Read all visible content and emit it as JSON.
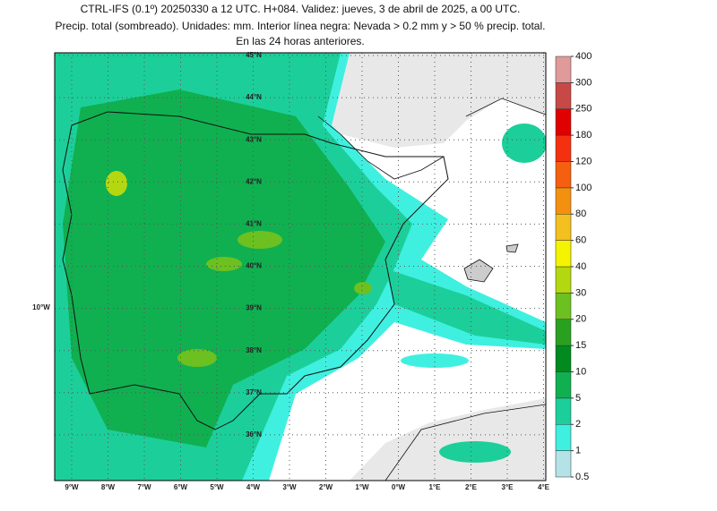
{
  "header": {
    "lines": [
      "CTRL-IFS (0.1º) 20250330 a 12 UTC. H+084. Validez: jueves, 3 de abril de 2025, a 00 UTC.",
      "Precip. total (sombreado). Unidades: mm. Interior línea negra: Nevada > 0.2 mm y > 50 % precip. total.",
      "En las 24 horas anteriores."
    ]
  },
  "map": {
    "lat_labels": [
      "45°N",
      "44°N",
      "43°N",
      "42°N",
      "41°N",
      "40°N",
      "39°N",
      "38°N",
      "37°N",
      "36°N"
    ],
    "lon_labels": [
      "9°W",
      "8°W",
      "7°W",
      "6°W",
      "5°W",
      "4°W",
      "3°W",
      "2°W",
      "1°W",
      "0°W",
      "1°E",
      "2°E",
      "3°E",
      "4°E"
    ],
    "side_label": "10°W"
  },
  "colorbar": {
    "levels": [
      0.5,
      1,
      2,
      5,
      10,
      15,
      20,
      30,
      40,
      60,
      80,
      100,
      120,
      180,
      250,
      300,
      400
    ],
    "colors": [
      "#b4e2e6",
      "#3ff0e0",
      "#1ccf9a",
      "#10b050",
      "#008a20",
      "#2aa020",
      "#6cc020",
      "#b4d810",
      "#f4f400",
      "#f4c020",
      "#f49010",
      "#f46010",
      "#f43010",
      "#e00000",
      "#c84848",
      "#e09a9a",
      "#f4cccc"
    ]
  }
}
